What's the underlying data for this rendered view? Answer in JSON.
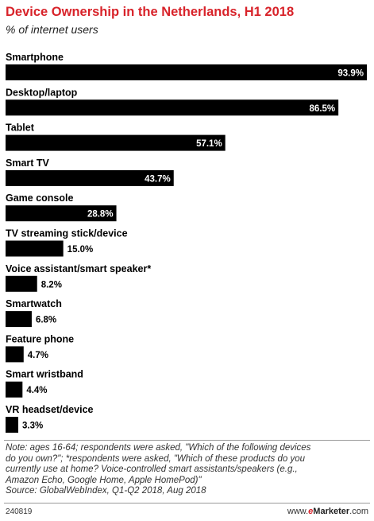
{
  "chart_data": {
    "type": "bar",
    "orientation": "horizontal",
    "title": "Device Ownership in the Netherlands, H1 2018",
    "subtitle": "% of internet users",
    "categories": [
      "Smartphone",
      "Desktop/laptop",
      "Tablet",
      "Smart TV",
      "Game console",
      "TV streaming stick/device",
      "Voice assistant/smart speaker*",
      "Smartwatch",
      "Feature phone",
      "Smart wristband",
      "VR headset/device"
    ],
    "values": [
      93.9,
      86.5,
      57.1,
      43.7,
      28.8,
      15.0,
      8.2,
      6.8,
      4.7,
      4.4,
      3.3
    ],
    "value_labels": [
      "93.9%",
      "86.5%",
      "57.1%",
      "43.7%",
      "28.8%",
      "15.0%",
      "8.2%",
      "6.8%",
      "4.7%",
      "4.4%",
      "3.3%"
    ],
    "xlim": [
      0,
      93.9
    ],
    "bar_color": "#000000",
    "grid": false,
    "legend": "none"
  },
  "colors": {
    "title": "#d8232a",
    "bars": "#000000",
    "brand_e": "#d8232a"
  },
  "note": {
    "line1": "Note: ages 16-64; respondents were asked, \"Which of the following devices",
    "line2": "do you own?\"; *respondents were asked, \"Which of these products do you",
    "line3": "currently use at home? Voice-controlled smart assistants/speakers (e.g.,",
    "line4": "Amazon Echo, Google Home, Apple HomePod)\"",
    "source": "Source: GlobalWebIndex, Q1-Q2 2018, Aug 2018"
  },
  "footer": {
    "id": "240819",
    "brand_prefix": "www.",
    "brand_e": "e",
    "brand_name": "Marketer",
    "brand_suffix": ".com"
  }
}
